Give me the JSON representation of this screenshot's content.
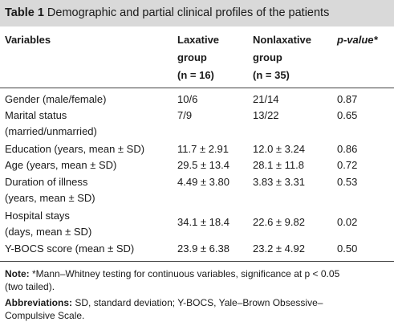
{
  "table": {
    "title_label": "Table 1",
    "title_text": "Demographic and partial clinical profiles of the patients",
    "headers": {
      "variables": "Variables",
      "laxative": [
        "Laxative",
        "group",
        "(n = 16)"
      ],
      "nonlaxative": [
        "Nonlaxative",
        "group",
        "(n = 35)"
      ],
      "pvalue": "p-value*"
    },
    "rows": [
      {
        "label": [
          "Gender (male/female)"
        ],
        "laxative": "10/6",
        "nonlaxative": "21/14",
        "p": "0.87"
      },
      {
        "label": [
          "Marital status",
          "(married/unmarried)"
        ],
        "laxative": "7/9",
        "nonlaxative": "13/22",
        "p": "0.65"
      },
      {
        "label": [
          "Education (years, mean ± SD)"
        ],
        "laxative": "11.7 ± 2.91",
        "nonlaxative": "12.0 ± 3.24",
        "p": "0.86"
      },
      {
        "label": [
          "Age (years, mean ± SD)"
        ],
        "laxative": "29.5 ± 13.4",
        "nonlaxative": "28.1 ± 11.8",
        "p": "0.72"
      },
      {
        "label": [
          "Duration of illness",
          "(years, mean ± SD)"
        ],
        "laxative": "4.49 ± 3.80",
        "nonlaxative": "3.83 ± 3.31",
        "p": "0.53"
      },
      {
        "label": [
          "Hospital stays",
          "(days, mean ± SD)"
        ],
        "laxative": "34.1 ± 18.4",
        "nonlaxative": "22.6 ± 9.82",
        "p": "0.02"
      },
      {
        "label": [
          "Y-BOCS score (mean ± SD)"
        ],
        "laxative": "23.9 ± 6.38",
        "nonlaxative": "23.2 ± 4.92",
        "p": "0.50"
      }
    ]
  },
  "notes": {
    "note_label": "Note:",
    "note_text": "*Mann–Whitney testing for continuous variables, significance at p < 0.05",
    "note_text2": "(two tailed).",
    "abbr_label": "Abbreviations:",
    "abbr_text": "SD, standard deviation; Y-BOCS, Yale–Brown Obsessive–",
    "abbr_text2": "Compulsive Scale."
  },
  "colors": {
    "title_background": "#d9d9d9",
    "text": "#1a1a1a"
  }
}
